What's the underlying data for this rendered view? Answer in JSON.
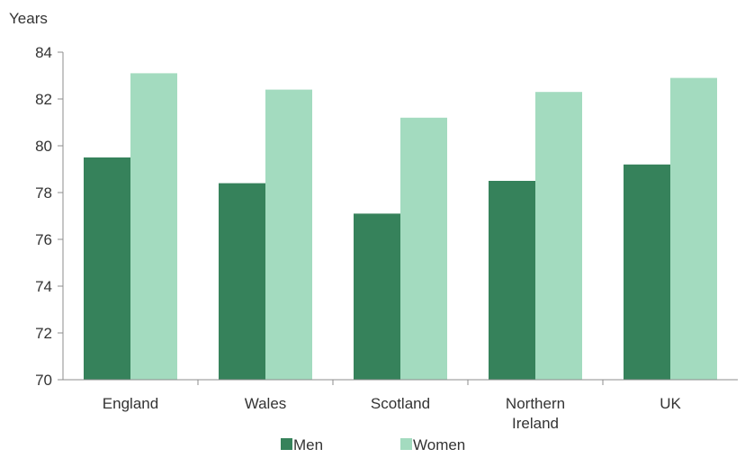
{
  "chart_data": {
    "type": "bar",
    "title": "",
    "xlabel": "",
    "ylabel": "Years",
    "ylim": [
      70,
      84
    ],
    "yticks": [
      70,
      72,
      74,
      76,
      78,
      80,
      82,
      84
    ],
    "grid": false,
    "legend_position": "bottom",
    "categories": [
      [
        "England"
      ],
      [
        "Wales"
      ],
      [
        "Scotland"
      ],
      [
        "Northern",
        "Ireland"
      ],
      [
        "UK"
      ]
    ],
    "series": [
      {
        "name": "Men",
        "color": "#36825b",
        "values": [
          79.5,
          78.4,
          77.1,
          78.5,
          79.2
        ]
      },
      {
        "name": "Women",
        "color": "#a3dbbf",
        "values": [
          83.1,
          82.4,
          81.2,
          82.3,
          82.9
        ]
      }
    ]
  }
}
